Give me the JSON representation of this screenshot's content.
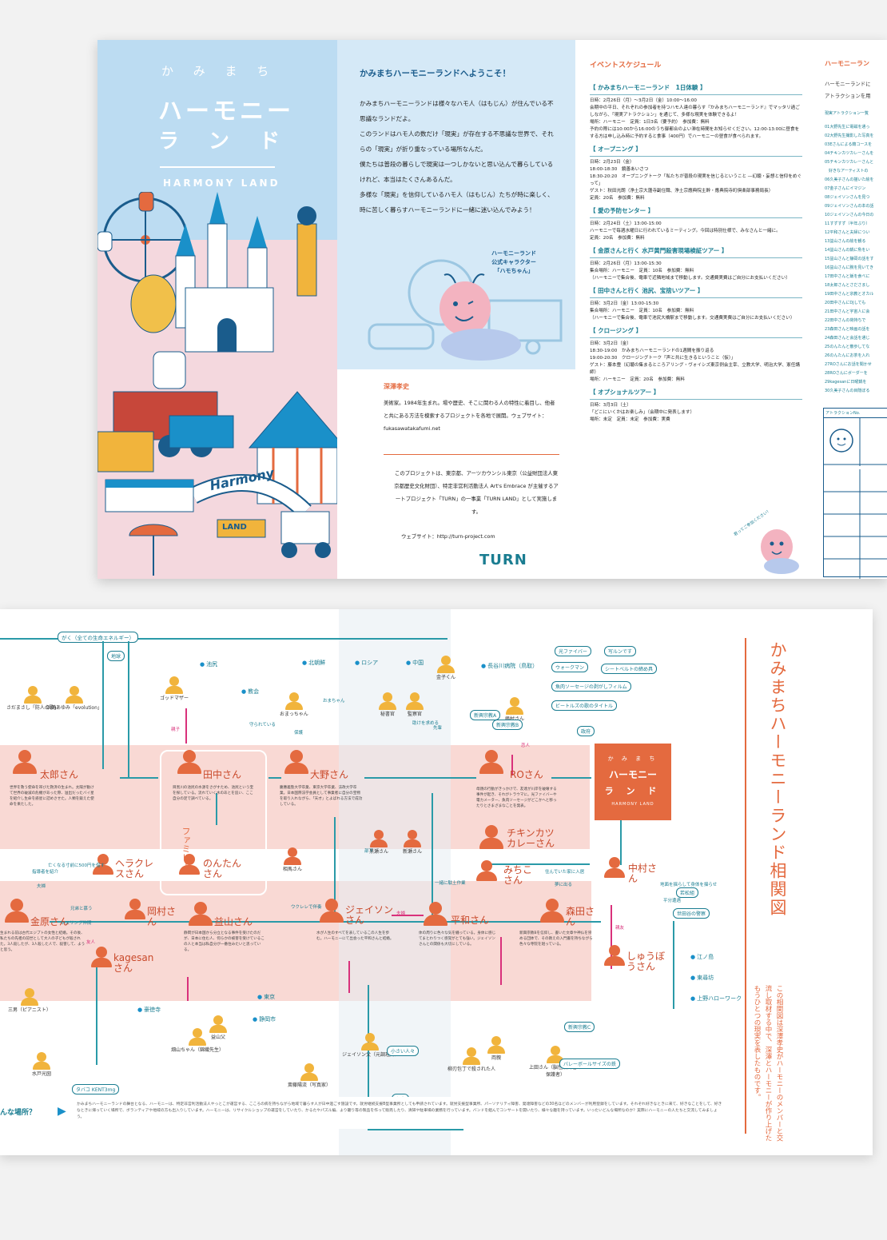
{
  "front": {
    "title_line1": "か み ま ち",
    "title_line2": "ハーモニー",
    "title_line3": "ラ ン ド",
    "title_en": "HARMONY LAND",
    "sign_text": "Harmony",
    "sign_text2": "LAND"
  },
  "intro": {
    "heading": "かみまちハーモニーランドへようこそ！",
    "paragraphs": [
      "かみまちハーモニーランドは様々なハモ人（はもじん）が住んでいる不思議なランドだよ。",
      "このランドはハモ人の数だけ「現実」が存在する不思議な世界で、それらの「現実」が折り重なっている場所なんだ。",
      "僕たちは普段の暮らしで現実は一つしかないと思い込んで暮らしているけれど、本当はたくさんあるんだ。",
      "多様な「現実」を信仰しているハモ人（はもじん）たちが時に楽しく、時に苦しく暮らすハーモニーランドに一緒に迷い込んでみよう！"
    ],
    "mascot_caption": "ハーモニーランド\n公式キャラクター\n「ハモちゃん」"
  },
  "artist": {
    "name": "深澤孝史",
    "bio": "美術家。1984年生まれ。場や歴史、そこに関わる人の特性に着目し、他者と共にある方法を模索するプロジェクトを各地で展開。ウェブサイト：fukasawatakafumi.net",
    "project": "このプロジェクトは、東京都、アーツカウンシル東京（公益財団法人東京都歴史文化財団）、特定非営利活動法人 Art's Embrace が主催するアートプロジェクト「TURN」の一事業「TURN LAND」として実施します。",
    "website": "ウェブサイト：http://turn-project.com",
    "logo": "TURN"
  },
  "schedule": {
    "heading": "イベントスケジュール",
    "events": [
      {
        "title": "【 かみまちハーモニーランド　1日体験 】",
        "lines": [
          "日時：2月26日（月）〜3月2日（金）10:00〜16:00",
          "会期中の平日、それぞれの参加者を持つハモ人達の暮らす『かみまちハーモニーランド』でマッタリ過ごしながら、「現実アトラクション」を通じて、多様な現実を体験できるよ！",
          "場所：ハーモニー　定員：1日3名（要予約）　参加費：無料",
          "予約の際には10:00から16:00のうち御都合のよい滞在時間をお知らせください。12:00-13:00に昼食をする方は申し込み時に予約すると食事（400円）でハーモニーの昼食が食べられます。"
        ]
      },
      {
        "title": "【 オープニング 】",
        "lines": [
          "日時：2月23日（金）",
          "18:00-18:30　鏡善あいさつ",
          "18:30-20:20　オープニングトーク「私たちが普段の現実を信じるということ ―幻聴・妄想と信仰をめぐって」",
          "ゲスト：秋田光朗（浄土宗大蓮寺副住職、浄土宗應典院主幹・應典院寺町倶楽部事務局長）",
          "定員：20名　参加費：無料"
        ]
      },
      {
        "title": "【 愛の予防センター 】",
        "lines": [
          "日時：2月24日（土）13:00-15:00",
          "ハーモニーで毎週水曜日に行われているミーティング。今回は特別仕様で、みなさんと一緒に。",
          "定員：20名　参加費：無料"
        ]
      },
      {
        "title": "【 金原さんと行く 水戸黄門殺害現場検証ツアー 】",
        "lines": [
          "日時：2月26日（月）13:00-15:30",
          "集合場所：ハーモニー　定員：10名　参加費：無料",
          "（ハーモニーで集合後、電車で近隣地域まで移動します。交通費実費はご自分にお支払いください）"
        ]
      },
      {
        "title": "【 田中さんと行く 池尻、宝捨いツアー 】",
        "lines": [
          "日時：3月2日（金）13:00-15:30",
          "集合場所：ハーモニー　定員：10名　参加費：無料",
          "（ハーモニーで集合後、電車で池尻大橋駅まで移動します。交通費実費はご自分にお支払いください）"
        ]
      },
      {
        "title": "【 クロージング 】",
        "lines": [
          "日時：3月2日（金）",
          "18:30-19:00　かみまちハーモニーランドの1週間を振り返る",
          "19:00-20:30　クロージングトーク「声と共に生きるということ（仮）」",
          "ゲスト：藤本豊（幻聴の集まるところアリング・ヴォイシズ東京例会主宰、立教大学、明治大学、憲任講師）",
          "場所：ハーモニー　定員：20名　参加費：無料"
        ]
      },
      {
        "title": "【 オプショナルツアー 】",
        "lines": [
          "日時：3月3日（土）",
          "「どこにいくかはお楽しみ」（会期中に発表します）",
          "場所：未定　定員：未定　参加費：実費"
        ]
      }
    ],
    "mascot_bubble": "君ってご参加ください！"
  },
  "attractions": {
    "heading": "ハーモニーラン",
    "intro": "ハーモニーランドに\nアトラクションを用",
    "list_title": "現実アトラクション一覧",
    "items": [
      "01大野先生に電磁を通っ",
      "02大野先生撮影した写真を",
      "03Eさんによる籍コースを",
      "04チキンカツカレーさんを",
      "05チキンカツカレーさんと",
      "　好きなアーティストの",
      "06久美子さんの描いた絵を",
      "07金子さんにイマジン",
      "08ジェイソンさんを見つ",
      "09ジェイソンさんの本の話",
      "10ジェイソンさんの今日の",
      "11すずすず（半年ぶり）",
      "12平和さんと夫婦につい",
      "13益山さんの絵を観る",
      "14益山さんの鍋に魚をい",
      "15益山さんと静岡の話をす",
      "16益山さんに腕を見いてき",
      "17田中さんと飯を食べに",
      "18太郎さんとさださまし",
      "19田中さんと宗教とオカル",
      "20田中さんにDJしても",
      "21田中さんと宇宙人に会",
      "22田中さんの荷持ちで",
      "23森田さんと映画の話を",
      "24森田さんと会話を通じ",
      "25のんたんと散歩してな",
      "26のんたんにお茶を入れ",
      "27ROさんにお話を聞かせ",
      "28ROさんにボーダーを",
      "29kagesanに日曜鍋を",
      "30久美子さんの目隠ぼる"
    ],
    "table_header": "アトラクションNo."
  },
  "map": {
    "title": "かみまちハーモニーランド相関図",
    "logo_line1": "か み ま ち",
    "logo_line2": "ハーモニー",
    "logo_line3": "ラ ン ド",
    "logo_en": "HARMONY LAND",
    "gaku_label": "がく（全ての生命エネルギー）",
    "family_label": "ファミリー",
    "description": "この相関図は深澤孝史がハーモニーのメンバーと交流し取材する中で、深澤とハーモニーが作り上げたもうひとつの現実を表したものです。",
    "question": "んな場所？",
    "footer": "かみまちハーモニーランドの舞台となる、ハーモニーは、特定非営利活動法人やっとこが運営する、こころの病を持ちながら地域で暮らす人が日中過ごす施設です。就労継続支援B型事業所としても申請されています。就労支援型事業所、パーソナリティ障害、発達障害などの30名ほどのメンバーが利用登録をしています。それぞれ好きなときに来て、好きなことをして、好きなときに帰っていく場所で、ボランティアや地域の方も出入りしています。ハーモニーは、リサイクルショップの運営をしていたり、かるたやパズル編、より籠り等の製品を作って販売したり、清掃や駐車場の業務を行っています。バンドを組んでコンサートを開いたり、様々な趣を持っています。いったいどんな場所なのか？実際にハーモニーの人たちと交流してみましょう。",
    "people": [
      {
        "name": "太郎さん",
        "desc": "世界を救う使命を帯びた救済の生まれ。太陽が動けて世界の破滅の危機があった際、溢出だったバイ星を紹介し生命を惑星に詰めさせた。人類を鍛えた使命を果たした。"
      },
      {
        "name": "田中さん",
        "desc": "目黒川の池尻の水源をさがすため、池尻という宝を探している。流れていく水のあとを追い、ここ自分の足で調べている。"
      },
      {
        "name": "大野さん",
        "desc": "慶應義塾大学卒業、東京大学卒業、法政大学卒業。日本国際法学会員として事業者に自分の宝物を取り入れながら、「天才」とよばれる方法で成功している。"
      },
      {
        "name": "ROさん",
        "desc": "母親の行動がきっかけで、友達が川岸を破壊する事件が起き、それがトラウマに。光ファイバーや電カメーター、魚肉ソーセージがどこかへと移ったりとさまざまなことを発表。"
      },
      {
        "name": "チキンカツカレーさん"
      },
      {
        "name": "ヘラクレスさん"
      },
      {
        "name": "のんたんさん"
      },
      {
        "name": "みちこさん"
      },
      {
        "name": "中村さん"
      },
      {
        "name": "金原さん",
        "desc": "生まれる前は古代エジプトの女性と結婚。その後、私たちの先祖の前世として大人の子どもが殺された。3人殺したが、3人殺した人で、殺害して、ようと思う。"
      },
      {
        "name": "岡村さん"
      },
      {
        "name": "益山さん",
        "desc": "静岡が日本国から分立となる事件を受けたのだが、日本に住む人、何らかの被害を受けているこの人と本当は私自分が一番住みたいと思っている。"
      },
      {
        "name": "ジェイソンさん",
        "desc": "水が人生のすべてを表しているこの人生を歩む。ハーモニーにて出会った平和さんと結婚。"
      },
      {
        "name": "平和さん",
        "desc": "体の周りに色々な気を纏っている。身体に感じてまとわりつく感覚がとても強い。ジェイソンさんとの関係も大切にしている。"
      },
      {
        "name": "森田さん",
        "desc": "新興宗教Bを信仰し、書いた文章や神仏を崇める団体で、その教えの入門書を持ちながら色々な寺院を廻っている。"
      },
      {
        "name": "kagesanさん"
      },
      {
        "name": "しゅうぼうさん"
      }
    ],
    "minor_people": [
      "さだまさし「防人の歌」",
      "浜崎あゆみ「evolution」",
      "ゴッドマザー",
      "おまっちゃん",
      "秘書官",
      "監察官",
      "金子くん",
      "嶋村さん",
      "黒瀬さん",
      "新瀬さん",
      "相馬さん",
      "三男（ピアニスト）",
      "水戸光圀",
      "畑山ちゃん（錦織先生）",
      "益山父",
      "斎藤陽流（写真家）",
      "ジェイソン父（元調理師）",
      "両親",
      "上田さん（脳性麻痺者の保護者）",
      "柳刃包丁で殺された人"
    ],
    "places": [
      "地球",
      "池尻",
      "教会",
      "北朝鮮",
      "ロシア",
      "中国",
      "長谷川病院（鳥取）",
      "東京",
      "静岡市",
      "豪徳寺",
      "江ノ島",
      "東尋坊",
      "上野ハローワーク",
      "若松組",
      "世田谷の警察"
    ],
    "things": [
      "光ファイバー",
      "写ルンです",
      "ウォークマン",
      "シートベルトの締め具",
      "魚肉ソーセージの剥がしフィルム",
      "ビートルズの歌のタイトル",
      "政府",
      "新興宗教A",
      "新興宗教B",
      "新興宗教C",
      "バレーボールサイズの鉄",
      "小さい人々",
      "お金",
      "タバコ KENT3mg"
    ],
    "relations": [
      "親子",
      "恋人",
      "夫婦",
      "友人",
      "親友",
      "兄弟と慕う",
      "レスリング仲間",
      "部下",
      "保護",
      "守られている",
      "助けを求める",
      "おまちゃん",
      "先輩",
      "ウクレレで伴奏",
      "一緒に駄土作業",
      "住んでいた家に入居",
      "夢に出る",
      "地面を揺らして身体を揺らせ",
      "平分遭遇",
      "夫婦",
      "指導者を紹介",
      "亡くなる寸前に500円を借す"
    ]
  }
}
